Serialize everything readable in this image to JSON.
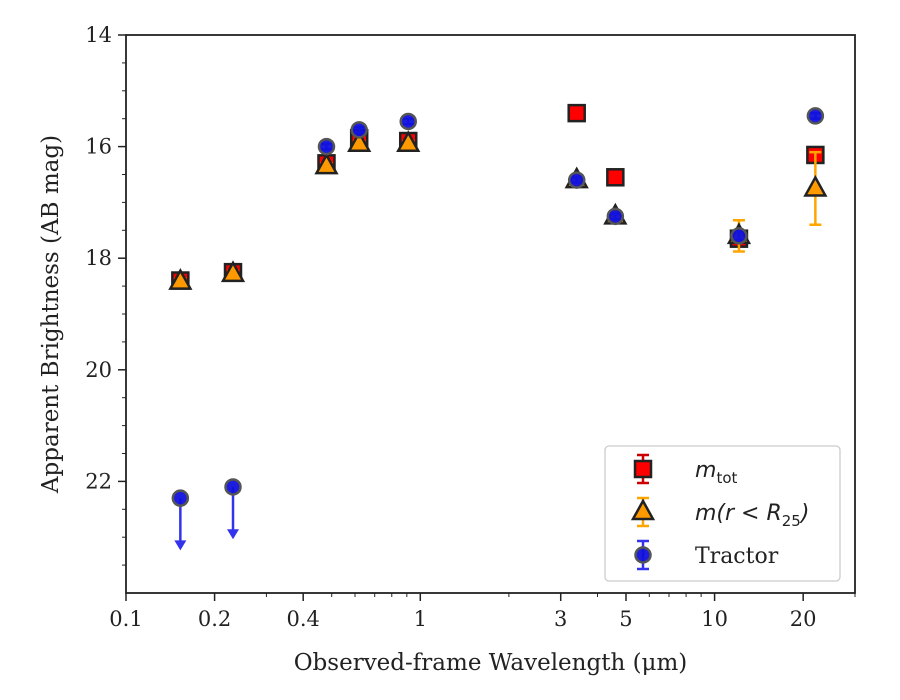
{
  "chart_data": {
    "type": "scatter",
    "xlabel": "Observed-frame Wavelength (μm)",
    "ylabel": "Apparent Brightness (AB mag)",
    "x_scale": "log",
    "xlim": [
      0.1,
      30
    ],
    "ylim": [
      24.0,
      14.0
    ],
    "y_inverted": true,
    "x_ticks": [
      {
        "value": 0.1,
        "label": "0.1"
      },
      {
        "value": 0.2,
        "label": "0.2"
      },
      {
        "value": 0.4,
        "label": "0.4"
      },
      {
        "value": 1,
        "label": "1"
      },
      {
        "value": 3,
        "label": "3"
      },
      {
        "value": 5,
        "label": "5"
      },
      {
        "value": 10,
        "label": "10"
      },
      {
        "value": 20,
        "label": "20"
      }
    ],
    "y_ticks": [
      {
        "value": 14,
        "label": "14"
      },
      {
        "value": 16,
        "label": "16"
      },
      {
        "value": 18,
        "label": "18"
      },
      {
        "value": 20,
        "label": "20"
      },
      {
        "value": 22,
        "label": "22"
      }
    ],
    "grid": false,
    "legend_position": "lower-right",
    "series": [
      {
        "name": "m_tot",
        "legend_main": "m",
        "legend_sub": "tot",
        "marker": "square",
        "color": "#ff0000",
        "edge_color": "#222222",
        "errorbar_color": "#cc0000",
        "points": [
          {
            "x": 0.153,
            "y": 18.4,
            "yerr": 0.1
          },
          {
            "x": 0.231,
            "y": 18.25,
            "yerr": 0.08
          },
          {
            "x": 0.48,
            "y": 16.3,
            "yerr": 0.1
          },
          {
            "x": 0.62,
            "y": 15.85,
            "yerr": 0.12
          },
          {
            "x": 0.91,
            "y": 15.9,
            "yerr": 0.1
          },
          {
            "x": 3.4,
            "y": 15.4,
            "yerr": 0.05
          },
          {
            "x": 4.6,
            "y": 16.55,
            "yerr": 0.05
          },
          {
            "x": 12.1,
            "y": 17.65,
            "yerr": 0.1
          },
          {
            "x": 22.0,
            "y": 16.15,
            "yerr": 0.05
          }
        ]
      },
      {
        "name": "m(r < R25)",
        "legend_main": "m(r < R",
        "legend_sub": "25",
        "legend_tail": ")",
        "marker": "triangle",
        "color": "#ff9900",
        "edge_color": "#222222",
        "errorbar_color": "#ffa500",
        "points": [
          {
            "x": 0.153,
            "y": 18.42,
            "yerr": 0.05
          },
          {
            "x": 0.231,
            "y": 18.28,
            "yerr": 0.05
          },
          {
            "x": 0.48,
            "y": 16.35,
            "yerr": 0.05
          },
          {
            "x": 0.62,
            "y": 15.95,
            "yerr": 0.05
          },
          {
            "x": 0.91,
            "y": 15.95,
            "yerr": 0.05
          },
          {
            "x": 3.4,
            "y": 16.6,
            "yerr": 0.05
          },
          {
            "x": 4.6,
            "y": 17.25,
            "yerr": 0.05
          },
          {
            "x": 12.1,
            "y": 17.6,
            "yerr": 0.28
          },
          {
            "x": 22.0,
            "y": 16.75,
            "yerr": 0.65
          }
        ]
      },
      {
        "name": "Tractor",
        "marker": "circle",
        "color": "#1111dd",
        "edge_color": "#555555",
        "errorbar_color": "#3333ee",
        "points": [
          {
            "x": 0.153,
            "y": 22.3,
            "upper_limit": true,
            "arrow_to": 23.2
          },
          {
            "x": 0.231,
            "y": 22.1,
            "upper_limit": true,
            "arrow_to": 23.0
          },
          {
            "x": 0.48,
            "y": 16.0,
            "yerr": 0.05
          },
          {
            "x": 0.62,
            "y": 15.7,
            "yerr": 0.05
          },
          {
            "x": 0.91,
            "y": 15.55,
            "yerr": 0.05
          },
          {
            "x": 3.4,
            "y": 16.6,
            "yerr": 0.05
          },
          {
            "x": 4.6,
            "y": 17.25,
            "yerr": 0.05
          },
          {
            "x": 12.1,
            "y": 17.6,
            "yerr": 0.08
          },
          {
            "x": 22.0,
            "y": 15.45,
            "yerr": 0.05
          }
        ]
      }
    ],
    "legend_entries": [
      {
        "series": 0
      },
      {
        "series": 1
      },
      {
        "series": 2,
        "text": "Tractor"
      }
    ]
  }
}
